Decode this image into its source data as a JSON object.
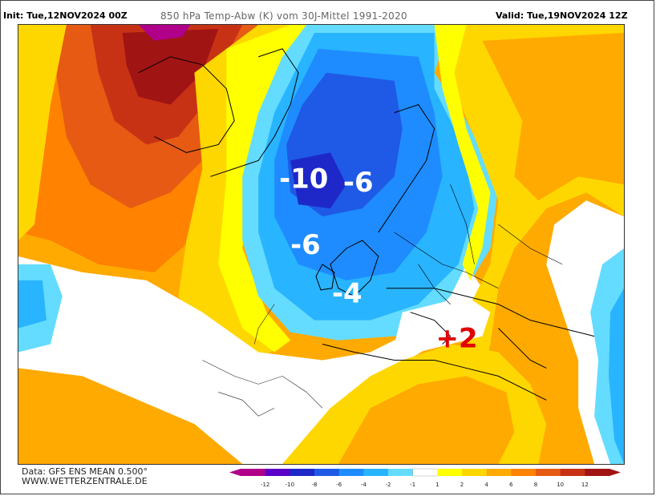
{
  "header": {
    "init": "Init: Tue,12NOV2024 00Z",
    "title": "850 hPa Temp-Abw (K) vom 30J-Mittel 1991-2020",
    "valid": "Valid: Tue,19NOV2024 12Z"
  },
  "annotations": [
    {
      "text": "-10",
      "color": "white"
    },
    {
      "text": "-6",
      "color": "white"
    },
    {
      "text": "-6",
      "color": "white"
    },
    {
      "text": "-4",
      "color": "white"
    },
    {
      "text": "+2",
      "color": "red"
    }
  ],
  "footer": {
    "data_line": "Data: GFS ENS MEAN 0.500°",
    "site": "WWW.WETTERZENTRALE.DE"
  },
  "legend": {
    "levels": [
      "-12",
      "-10",
      "-8",
      "-6",
      "-4",
      "-2",
      "-1",
      "1",
      "2",
      "4",
      "6",
      "8",
      "10",
      "12"
    ],
    "colors": [
      "#b0008a",
      "#5a00c8",
      "#1e28c8",
      "#1e5ae6",
      "#1e8cff",
      "#28b4ff",
      "#64dcff",
      "#ffffff",
      "#ffff00",
      "#ffd700",
      "#ffaa00",
      "#ff8200",
      "#e65a14",
      "#c83214",
      "#a01414"
    ]
  },
  "colors": {
    "white_land": "#ffffff",
    "coast": "#000000",
    "deep_red": "#a01414",
    "red": "#c83214",
    "orange_red": "#e65a14",
    "orange": "#ff8200",
    "light_orange": "#ffaa00",
    "gold": "#ffd700",
    "yellow": "#ffff00",
    "light_blue": "#64dcff",
    "sky_blue": "#28b4ff",
    "blue": "#1e8cff",
    "med_blue": "#1e5ae6",
    "dark_blue": "#1e28c8",
    "magenta": "#b0008a"
  }
}
